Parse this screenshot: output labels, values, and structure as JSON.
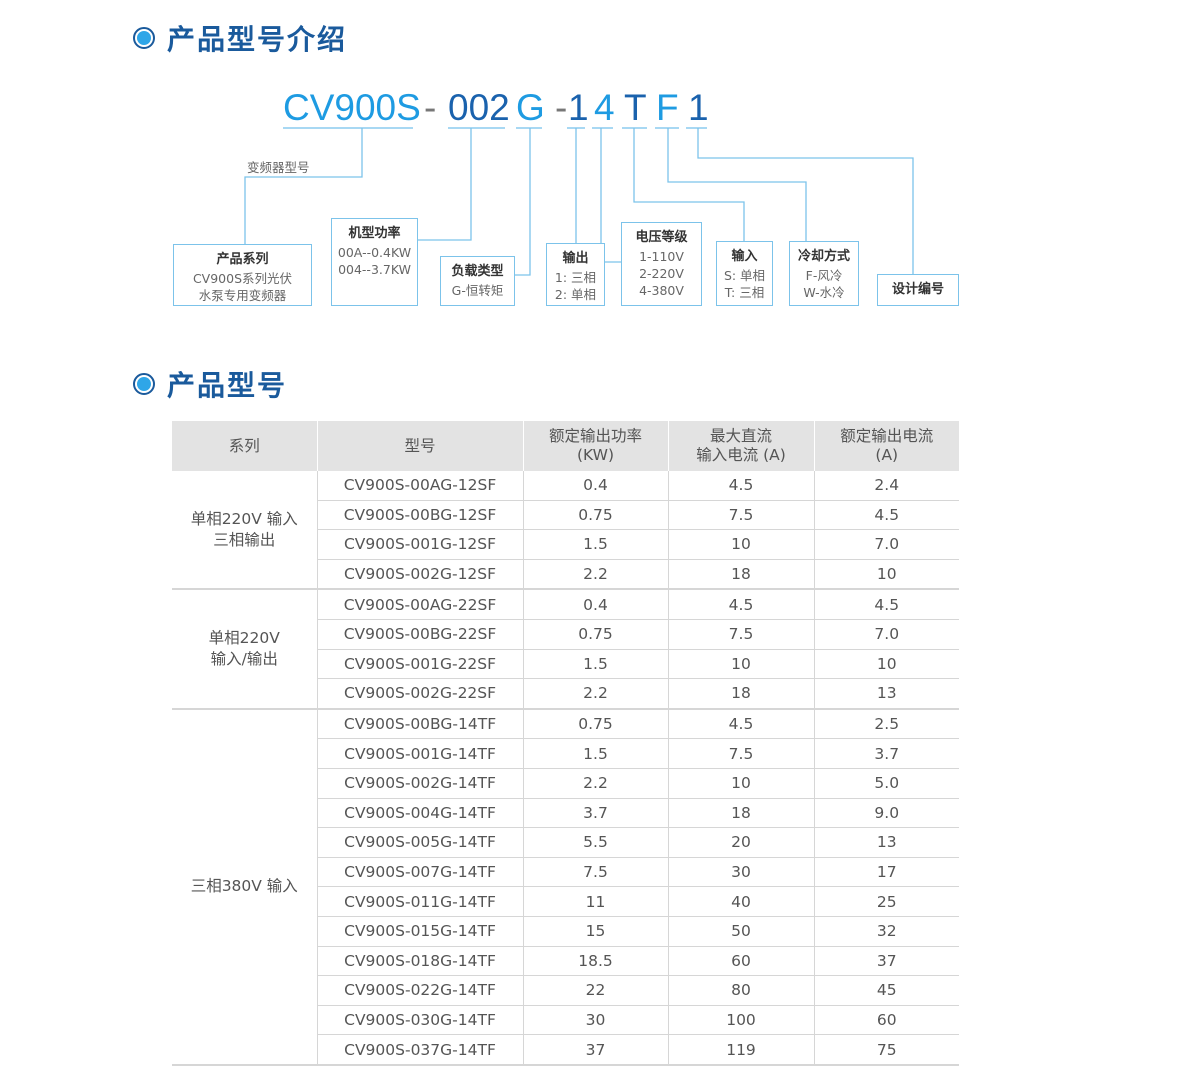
{
  "section1": {
    "title": "产品型号介绍"
  },
  "code": {
    "segments": [
      {
        "text": "CV900S",
        "tone": "light"
      },
      {
        "text": "-",
        "tone": "dash"
      },
      {
        "text": "002",
        "tone": "dark"
      },
      {
        "text": "G",
        "tone": "light"
      },
      {
        "text": "-",
        "tone": "dash"
      },
      {
        "text": "1",
        "tone": "dark"
      },
      {
        "text": "4",
        "tone": "light"
      },
      {
        "text": "T",
        "tone": "dark"
      },
      {
        "text": "F",
        "tone": "light"
      },
      {
        "text": "1",
        "tone": "dark"
      }
    ],
    "label": "变频器型号",
    "boxes": [
      {
        "title": "产品系列",
        "lines": [
          "CV900S系列光伏",
          "水泵专用变频器"
        ]
      },
      {
        "title": "机型功率",
        "lines": [
          "00A--0.4KW",
          "004--3.7KW"
        ]
      },
      {
        "title": "负载类型",
        "lines": [
          "G-恒转矩"
        ]
      },
      {
        "title": "输出",
        "lines": [
          "1: 三相",
          "2: 单相"
        ]
      },
      {
        "title": "电压等级",
        "lines": [
          "1-110V",
          "2-220V",
          "4-380V"
        ]
      },
      {
        "title": "输入",
        "lines": [
          "S: 单相",
          "T: 三相"
        ]
      },
      {
        "title": "冷却方式",
        "lines": [
          "F-风冷",
          "W-水冷"
        ]
      },
      {
        "title": "设计编号",
        "lines": []
      }
    ]
  },
  "section2": {
    "title": "产品型号"
  },
  "table": {
    "headers": [
      [
        "系列"
      ],
      [
        "型号"
      ],
      [
        "额定输出功率",
        "(KW)"
      ],
      [
        "最大直流",
        "输入电流 (A)"
      ],
      [
        "额定输出电流",
        "(A)"
      ]
    ],
    "groups": [
      {
        "series": [
          "单相220V 输入",
          "三相输出"
        ],
        "rows": [
          [
            "CV900S-00AG-12SF",
            "0.4",
            "4.5",
            "2.4"
          ],
          [
            "CV900S-00BG-12SF",
            "0.75",
            "7.5",
            "4.5"
          ],
          [
            "CV900S-001G-12SF",
            "1.5",
            "10",
            "7.0"
          ],
          [
            "CV900S-002G-12SF",
            "2.2",
            "18",
            "10"
          ]
        ]
      },
      {
        "series": [
          "单相220V",
          "输入/输出"
        ],
        "rows": [
          [
            "CV900S-00AG-22SF",
            "0.4",
            "4.5",
            "4.5"
          ],
          [
            "CV900S-00BG-22SF",
            "0.75",
            "7.5",
            "7.0"
          ],
          [
            "CV900S-001G-22SF",
            "1.5",
            "10",
            "10"
          ],
          [
            "CV900S-002G-22SF",
            "2.2",
            "18",
            "13"
          ]
        ]
      },
      {
        "series": [
          "三相380V 输入"
        ],
        "rows": [
          [
            "CV900S-00BG-14TF",
            "0.75",
            "4.5",
            "2.5"
          ],
          [
            "CV900S-001G-14TF",
            "1.5",
            "7.5",
            "3.7"
          ],
          [
            "CV900S-002G-14TF",
            "2.2",
            "10",
            "5.0"
          ],
          [
            "CV900S-004G-14TF",
            "3.7",
            "18",
            "9.0"
          ],
          [
            "CV900S-005G-14TF",
            "5.5",
            "20",
            "13"
          ],
          [
            "CV900S-007G-14TF",
            "7.5",
            "30",
            "17"
          ],
          [
            "CV900S-011G-14TF",
            "11",
            "40",
            "25"
          ],
          [
            "CV900S-015G-14TF",
            "15",
            "50",
            "32"
          ],
          [
            "CV900S-018G-14TF",
            "18.5",
            "60",
            "37"
          ],
          [
            "CV900S-022G-14TF",
            "22",
            "80",
            "45"
          ],
          [
            "CV900S-030G-14TF",
            "30",
            "100",
            "60"
          ],
          [
            "CV900S-037G-14TF",
            "37",
            "119",
            "75"
          ]
        ]
      }
    ]
  }
}
